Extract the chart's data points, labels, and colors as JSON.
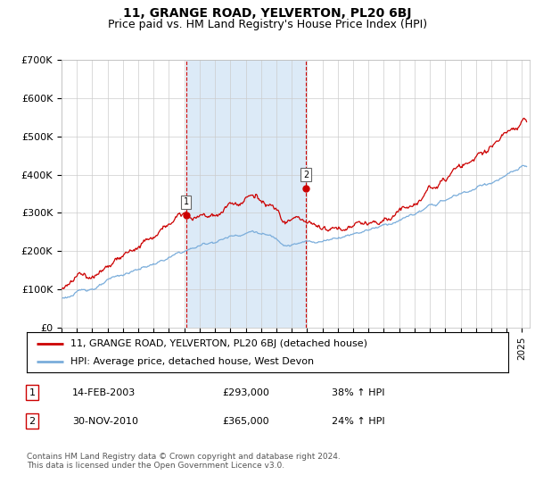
{
  "title": "11, GRANGE ROAD, YELVERTON, PL20 6BJ",
  "subtitle": "Price paid vs. HM Land Registry's House Price Index (HPI)",
  "ylabel_ticks": [
    "£0",
    "£100K",
    "£200K",
    "£300K",
    "£400K",
    "£500K",
    "£600K",
    "£700K"
  ],
  "ytick_vals": [
    0,
    100000,
    200000,
    300000,
    400000,
    500000,
    600000,
    700000
  ],
  "ylim": [
    0,
    700000
  ],
  "xlim_start": 1995.0,
  "xlim_end": 2025.5,
  "hpi_line_color": "#7aaddb",
  "price_line_color": "#cc0000",
  "shade_color": "#dceaf7",
  "vline_color": "#cc0000",
  "grid_color": "#cccccc",
  "sale1_x": 2003.12,
  "sale1_y": 293000,
  "sale2_x": 2010.92,
  "sale2_y": 365000,
  "legend_line1": "11, GRANGE ROAD, YELVERTON, PL20 6BJ (detached house)",
  "legend_line2": "HPI: Average price, detached house, West Devon",
  "table_row1": [
    "1",
    "14-FEB-2003",
    "£293,000",
    "38% ↑ HPI"
  ],
  "table_row2": [
    "2",
    "30-NOV-2010",
    "£365,000",
    "24% ↑ HPI"
  ],
  "footnote": "Contains HM Land Registry data © Crown copyright and database right 2024.\nThis data is licensed under the Open Government Licence v3.0.",
  "title_fontsize": 10,
  "subtitle_fontsize": 9,
  "tick_fontsize": 8,
  "legend_fontsize": 8,
  "table_fontsize": 8,
  "footnote_fontsize": 6.5
}
